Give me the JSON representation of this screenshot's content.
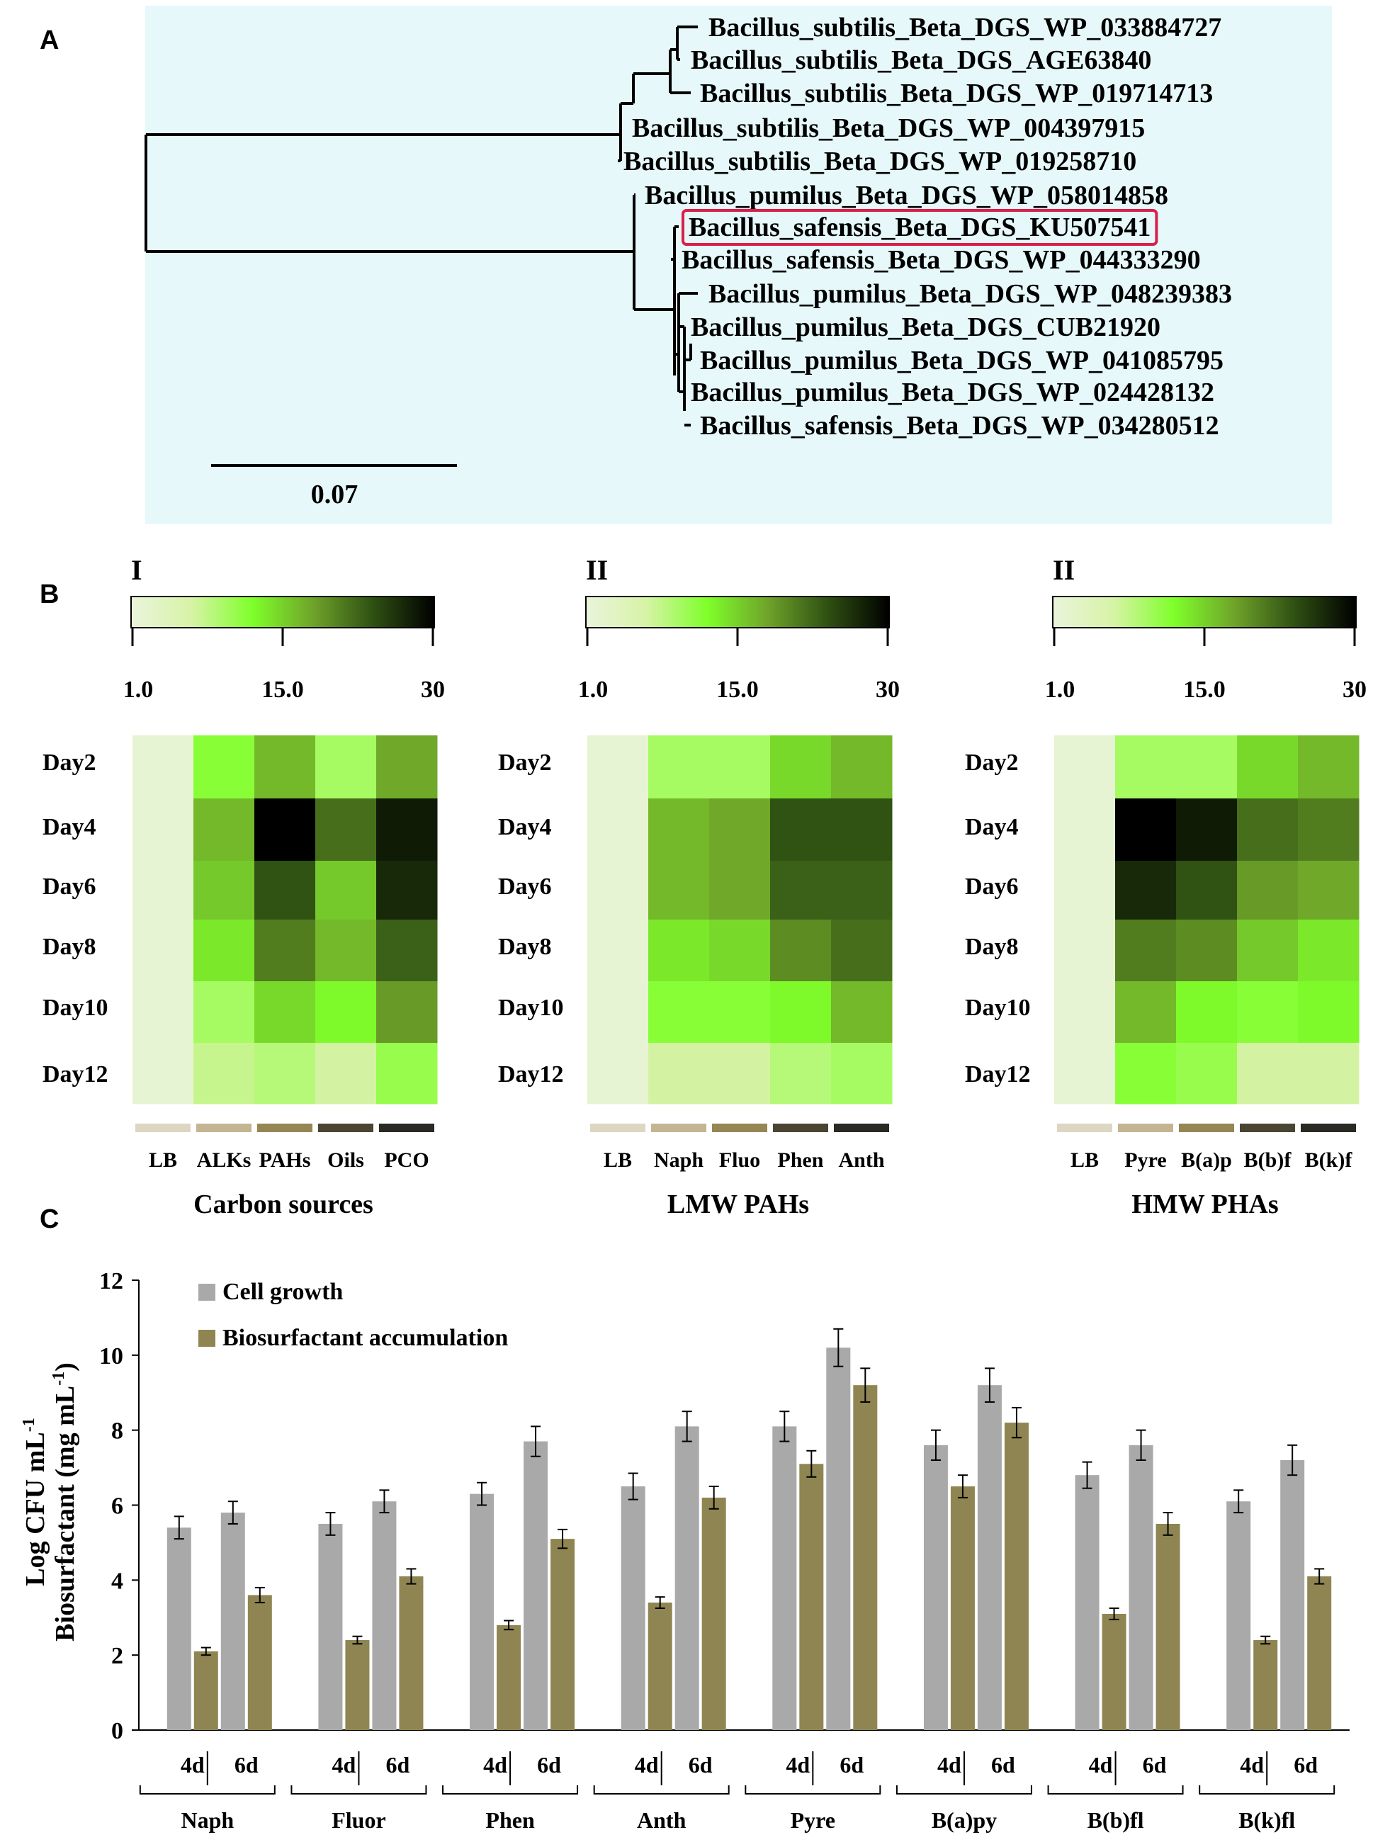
{
  "panels": {
    "a": "A",
    "b": "B",
    "c": "C"
  },
  "tree": {
    "leaves": [
      "Bacillus_subtilis_Beta_DGS_WP_033884727",
      "Bacillus_subtilis_Beta_DGS_AGE63840",
      "Bacillus_subtilis_Beta_DGS_WP_019714713",
      "Bacillus_subtilis_Beta_DGS_WP_004397915",
      "Bacillus_subtilis_Beta_DGS_WP_019258710",
      "Bacillus_pumilus_Beta_DGS_WP_058014858",
      "Bacillus_safensis_Beta_DGS_KU507541",
      "Bacillus_safensis_Beta_DGS_WP_044333290",
      "Bacillus_pumilus_Beta_DGS_WP_048239383",
      "Bacillus_pumilus_Beta_DGS_CUB21920",
      "Bacillus_pumilus_Beta_DGS_WP_041085795",
      "Bacillus_pumilus_Beta_DGS_WP_024428132",
      "Bacillus_safensis_Beta_DGS_WP_034280512"
    ],
    "highlighted": "Bacillus_safensis_Beta_DGS_KU507541",
    "scale_label": "0.07",
    "background": "#e6f8fa",
    "highlight_color": "#d9204a"
  },
  "heatmaps": {
    "scale": {
      "min": 1.0,
      "max": 30,
      "tick_labels": [
        "1.0",
        "15.0",
        "30"
      ]
    },
    "colors": [
      "#eaf4dc",
      "#d7f3a6",
      "#7fff2a",
      "#6fa32a",
      "#2e4f12",
      "#000000"
    ],
    "days": [
      "Day2",
      "Day4",
      "Day6",
      "Day8",
      "Day10",
      "Day12"
    ],
    "legend_colors": [
      "#dcd6c2",
      "#c4b592",
      "#958653",
      "#4a4532",
      "#2a2a22"
    ],
    "panels": [
      {
        "roman": "I",
        "title": "Carbon sources",
        "columns": [
          "LB",
          "ALKs",
          "PAHs",
          "Oils",
          "PCO"
        ],
        "values": [
          [
            2,
            12,
            17,
            10,
            18
          ],
          [
            2,
            17,
            30,
            22,
            28
          ],
          [
            2,
            16,
            24,
            16,
            27
          ],
          [
            2,
            14,
            21,
            17,
            23
          ],
          [
            2,
            10,
            15,
            13,
            19
          ],
          [
            2,
            8,
            9,
            7,
            11
          ]
        ]
      },
      {
        "roman": "II",
        "title": "LMW PAHs",
        "columns": [
          "LB",
          "Naph",
          "Fluo",
          "Phen",
          "Anth"
        ],
        "values": [
          [
            2,
            10,
            10,
            15,
            17
          ],
          [
            2,
            17,
            18,
            24,
            24
          ],
          [
            2,
            17,
            18,
            23,
            23
          ],
          [
            2,
            14,
            15,
            20,
            22
          ],
          [
            2,
            12,
            12,
            13,
            17
          ],
          [
            2,
            7,
            7,
            9,
            10
          ]
        ]
      },
      {
        "roman": "II",
        "title": "HMW PHAs",
        "columns": [
          "LB",
          "Pyre",
          "B(a)p",
          "B(b)f",
          "B(k)f"
        ],
        "values": [
          [
            2,
            10,
            10,
            15,
            17
          ],
          [
            2,
            30,
            28,
            22,
            21
          ],
          [
            2,
            27,
            24,
            19,
            18
          ],
          [
            2,
            21,
            20,
            16,
            14
          ],
          [
            2,
            17,
            13,
            12,
            13
          ],
          [
            2,
            12,
            11,
            7,
            7
          ]
        ]
      }
    ]
  },
  "chart_data": {
    "type": "bar",
    "title": "",
    "xlabel": "",
    "ylabel_lines": [
      "Log CFU mL",
      "Biosurfactant (mg mL",
      "-1",
      ")"
    ],
    "ylim": [
      0,
      12
    ],
    "yticks": [
      "0",
      "2",
      "4",
      "6",
      "8",
      "10",
      "12"
    ],
    "groups": [
      "Naph",
      "Fluor",
      "Phen",
      "Anth",
      "Pyre",
      "B(a)py",
      "B(b)fl",
      "B(k)fl"
    ],
    "subcategories": [
      "4d",
      "6d"
    ],
    "series": [
      {
        "name": "Cell growth",
        "color": "#a9a9a9",
        "values": [
          5.4,
          5.8,
          5.5,
          6.1,
          6.3,
          7.7,
          6.5,
          8.1,
          8.1,
          10.2,
          7.6,
          9.2,
          6.8,
          7.6,
          6.1,
          7.2
        ],
        "errors": [
          0.3,
          0.3,
          0.3,
          0.3,
          0.3,
          0.4,
          0.35,
          0.4,
          0.4,
          0.5,
          0.4,
          0.45,
          0.35,
          0.4,
          0.3,
          0.4
        ]
      },
      {
        "name": "Biosurfactant accumulation",
        "color": "#8f8552",
        "values": [
          2.1,
          3.6,
          2.4,
          4.1,
          2.8,
          5.1,
          3.4,
          6.2,
          7.1,
          9.2,
          6.5,
          8.2,
          3.1,
          5.5,
          2.4,
          4.1
        ],
        "errors": [
          0.1,
          0.2,
          0.1,
          0.2,
          0.12,
          0.25,
          0.15,
          0.3,
          0.35,
          0.45,
          0.3,
          0.4,
          0.15,
          0.3,
          0.1,
          0.2
        ]
      }
    ]
  }
}
